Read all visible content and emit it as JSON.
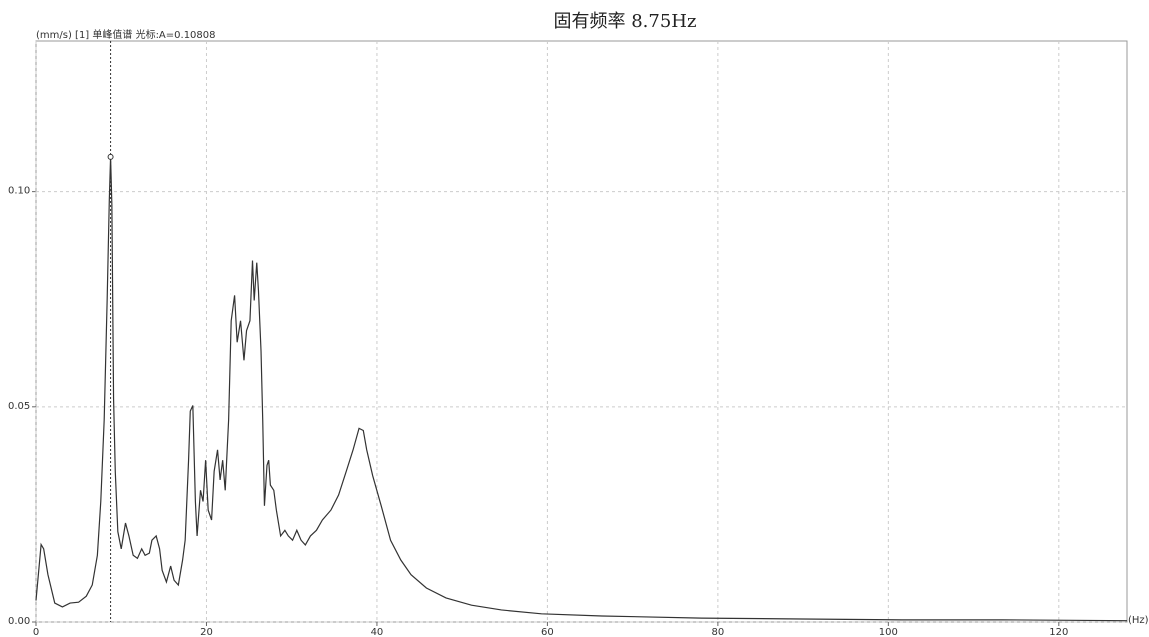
{
  "chart_data": {
    "type": "line",
    "title": "固有频率 8.75Hz",
    "ylabel": "(mm/s) [1] 单峰值谱 光标:A=0.10808",
    "xlabel": "(Hz)",
    "color": "#333333",
    "grid": true,
    "xlim": [
      0,
      128
    ],
    "ylim": [
      0,
      0.135
    ],
    "xticks": [
      0,
      20,
      40,
      60,
      80,
      100,
      120
    ],
    "yticks": [
      {
        "value": 0,
        "label": "0.00"
      },
      {
        "value": 0.05,
        "label": "0.05"
      },
      {
        "value": 0.1,
        "label": "0.10"
      }
    ],
    "cursor": {
      "x": 8.75,
      "y": 0.10808
    },
    "x": [
      0,
      0.6,
      0.9,
      1.4,
      2.2,
      3.1,
      4,
      5,
      5.9,
      6.6,
      7.2,
      7.6,
      8,
      8.35,
      8.6,
      8.75,
      8.9,
      9.1,
      9.3,
      9.6,
      10,
      10.5,
      10.9,
      11.4,
      11.9,
      12.4,
      12.8,
      13.3,
      13.6,
      14.1,
      14.5,
      14.8,
      15.3,
      15.8,
      16.2,
      16.7,
      17.2,
      17.5,
      17.9,
      18.1,
      18.4,
      18.7,
      18.9,
      19.3,
      19.6,
      19.9,
      20.2,
      20.6,
      20.9,
      21.3,
      21.6,
      21.9,
      22.2,
      22.6,
      22.9,
      23.3,
      23.6,
      24,
      24.4,
      24.7,
      25.1,
      25.4,
      25.6,
      25.9,
      26.1,
      26.4,
      26.6,
      26.8,
      27.1,
      27.3,
      27.5,
      27.9,
      28.2,
      28.7,
      29.2,
      29.6,
      30.1,
      30.6,
      31.1,
      31.6,
      32.2,
      32.9,
      33.6,
      34.6,
      35.5,
      36.4,
      37.2,
      37.9,
      38.4,
      38.8,
      39.5,
      40.5,
      41.6,
      42.8,
      44,
      45.8,
      48.1,
      51.1,
      54.6,
      59.3,
      66.4,
      78.1,
      89.9,
      101.6,
      113.4,
      128
    ],
    "values": [
      0.005,
      0.018,
      0.017,
      0.011,
      0.0044,
      0.0035,
      0.0044,
      0.0046,
      0.006,
      0.0086,
      0.0155,
      0.028,
      0.047,
      0.075,
      0.098,
      0.108,
      0.097,
      0.052,
      0.035,
      0.021,
      0.017,
      0.023,
      0.02,
      0.0155,
      0.0148,
      0.017,
      0.0155,
      0.016,
      0.019,
      0.02,
      0.017,
      0.012,
      0.0093,
      0.013,
      0.0097,
      0.0086,
      0.0144,
      0.019,
      0.0376,
      0.049,
      0.0503,
      0.028,
      0.02,
      0.0306,
      0.028,
      0.0376,
      0.026,
      0.0237,
      0.035,
      0.04,
      0.033,
      0.0376,
      0.0306,
      0.047,
      0.07,
      0.0759,
      0.065,
      0.07,
      0.0608,
      0.0677,
      0.07,
      0.084,
      0.0747,
      0.0835,
      0.077,
      0.063,
      0.047,
      0.027,
      0.0364,
      0.0376,
      0.0318,
      0.0306,
      0.026,
      0.02,
      0.0213,
      0.02,
      0.019,
      0.0213,
      0.019,
      0.0179,
      0.02,
      0.0213,
      0.0237,
      0.026,
      0.0295,
      0.035,
      0.04,
      0.045,
      0.0445,
      0.04,
      0.034,
      0.027,
      0.019,
      0.0144,
      0.011,
      0.0079,
      0.0056,
      0.0039,
      0.0028,
      0.0019,
      0.0014,
      0.0009,
      0.0007,
      0.0005,
      0.0005,
      0.0003
    ]
  }
}
